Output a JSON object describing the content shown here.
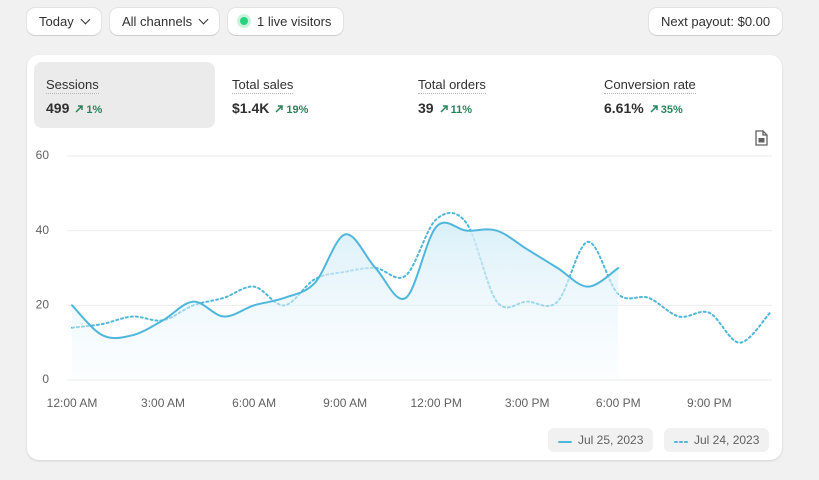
{
  "toolbar": {
    "date_filter": "Today",
    "channel_filter": "All channels",
    "live_visitors": "1 live visitors",
    "payout": "Next payout: $0.00"
  },
  "metrics": [
    {
      "label": "Sessions",
      "value": "499",
      "change": "1%"
    },
    {
      "label": "Total sales",
      "value": "$1.4K",
      "change": "19%"
    },
    {
      "label": "Total orders",
      "value": "39",
      "change": "11%"
    },
    {
      "label": "Conversion rate",
      "value": "6.61%",
      "change": "35%"
    }
  ],
  "chart_data": {
    "type": "line",
    "categories": [
      "12:00 AM",
      null,
      null,
      "3:00 AM",
      null,
      null,
      "6:00 AM",
      null,
      null,
      "9:00 AM",
      null,
      null,
      "12:00 PM",
      null,
      null,
      "3:00 PM",
      null,
      null,
      "6:00 PM",
      null,
      null,
      "9:00 PM",
      null,
      null
    ],
    "series": [
      {
        "name": "Jul 25, 2023",
        "color": "#4fb6dc",
        "dash": false,
        "values": [
          20,
          12,
          12,
          16,
          21,
          17,
          20,
          22,
          26,
          39,
          30,
          22,
          41,
          40,
          40,
          35,
          30,
          25,
          30,
          null,
          null,
          null,
          null,
          null
        ]
      },
      {
        "name": "Jul 24, 2023",
        "color": "#4fb6dc",
        "dash": true,
        "values": [
          14,
          15,
          17,
          16,
          20,
          22,
          25,
          20,
          27,
          29,
          30,
          28,
          43,
          42,
          21,
          21,
          21,
          37,
          23,
          22,
          17,
          18,
          10,
          18
        ]
      }
    ],
    "ylim": [
      0,
      60
    ],
    "yticks": [
      0,
      20,
      40,
      60
    ],
    "grid": true
  }
}
